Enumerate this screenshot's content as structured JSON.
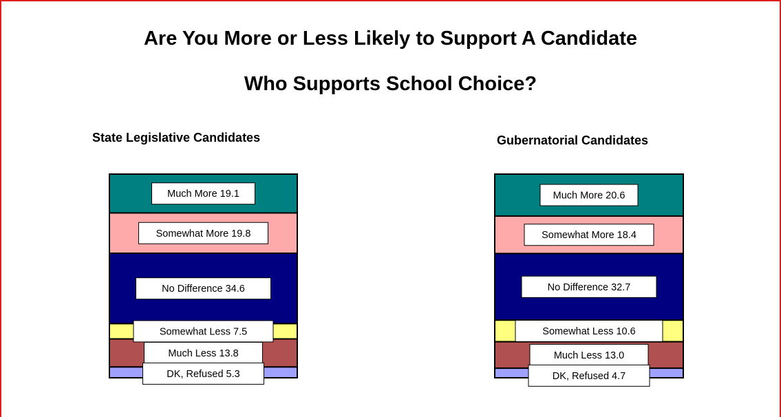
{
  "title_lines": [
    "Are You More or Less Likely to Support A Candidate",
    "Who Supports School Choice?"
  ],
  "chart_data": [
    {
      "type": "bar",
      "subtype": "100% stacked column",
      "title": "State Legislative Candidates",
      "categories": [
        "State Legislative Candidates"
      ],
      "series": [
        {
          "name": "Much More",
          "value": 19.1,
          "color": "#008080"
        },
        {
          "name": "Somewhat More",
          "value": 19.8,
          "color": "#ffaaaa"
        },
        {
          "name": "No Difference",
          "value": 34.6,
          "color": "#000080"
        },
        {
          "name": "Somewhat Less",
          "value": 7.5,
          "color": "#ffff80"
        },
        {
          "name": "Much Less",
          "value": 13.8,
          "color": "#b05050"
        },
        {
          "name": "DK, Refused",
          "value": 5.3,
          "color": "#a0a0ff"
        }
      ],
      "labels": [
        "Much More 19.1",
        "Somewhat More 19.8",
        "No Difference 34.6",
        "Somewhat Less 7.5",
        "Much Less 13.8",
        "DK, Refused 5.3"
      ]
    },
    {
      "type": "bar",
      "subtype": "100% stacked column",
      "title": "Gubernatorial Candidates",
      "categories": [
        "Gubernatorial Candidates"
      ],
      "series": [
        {
          "name": "Much More",
          "value": 20.6,
          "color": "#008080"
        },
        {
          "name": "Somewhat More",
          "value": 18.4,
          "color": "#ffaaaa"
        },
        {
          "name": "No Difference",
          "value": 32.7,
          "color": "#000080"
        },
        {
          "name": "Somewhat Less",
          "value": 10.6,
          "color": "#ffff80"
        },
        {
          "name": "Much Less",
          "value": 13.0,
          "color": "#b05050"
        },
        {
          "name": "DK, Refused",
          "value": 4.7,
          "color": "#a0a0ff"
        }
      ],
      "labels": [
        "Much More 20.6",
        "Somewhat More 18.4",
        "No Difference 32.7",
        "Somewhat Less 10.6",
        "Much Less 13.0",
        "DK, Refused 4.7"
      ]
    }
  ]
}
